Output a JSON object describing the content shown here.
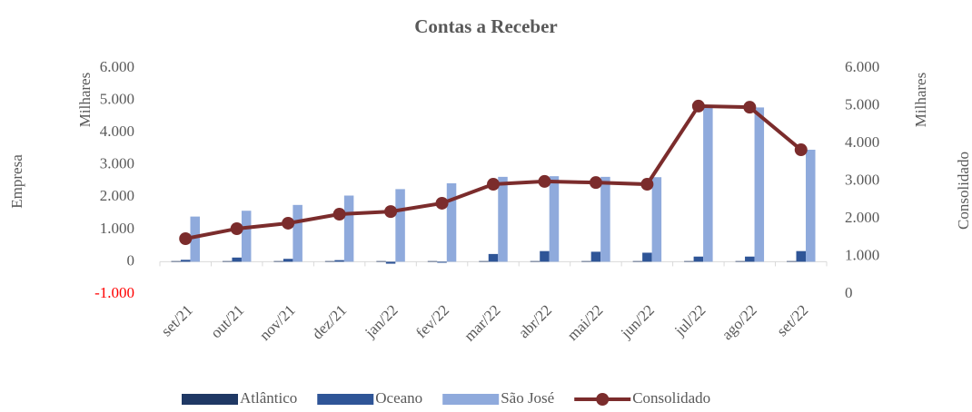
{
  "chart_data": {
    "type": "bar_line",
    "title": "Contas a Receber",
    "y_label": "Empresa",
    "y_unit": "Milhares",
    "y2_label": "Consolidado",
    "y2_unit": "Milhares",
    "categories": [
      "set/21",
      "out/21",
      "nov/21",
      "dez/21",
      "jan/22",
      "fev/22",
      "mar/22",
      "abr/22",
      "mai/22",
      "jun/22",
      "jul/22",
      "ago/22",
      "set/22"
    ],
    "series": [
      {
        "name": "Atlântico",
        "type": "bar",
        "color": "#1f3864",
        "values": [
          20,
          20,
          20,
          20,
          20,
          20,
          20,
          20,
          20,
          20,
          20,
          20,
          20
        ]
      },
      {
        "name": "Oceano",
        "type": "bar",
        "color": "#2f5597",
        "values": [
          60,
          130,
          90,
          50,
          -60,
          -30,
          240,
          330,
          310,
          280,
          160,
          160,
          330
        ]
      },
      {
        "name": "São José",
        "type": "bar",
        "color": "#8faadc",
        "values": [
          1400,
          1580,
          1760,
          2050,
          2250,
          2430,
          2630,
          2650,
          2630,
          2620,
          4850,
          4780,
          3470
        ]
      },
      {
        "name": "Consolidado",
        "type": "line",
        "axis": "y2",
        "color": "#7b2c2c",
        "values": [
          1470,
          1735,
          1880,
          2120,
          2190,
          2410,
          2915,
          2990,
          2960,
          2915,
          4990,
          4960,
          3830
        ]
      }
    ],
    "ylim": [
      -1000,
      6000
    ],
    "yticks": [
      {
        "value": -1000,
        "label": "-1.000"
      },
      0,
      {
        "value": 1000,
        "label": "1.000"
      },
      {
        "value": 2000,
        "label": "2.000"
      },
      {
        "value": 3000,
        "label": "3.000"
      },
      {
        "value": 4000,
        "label": "4.000"
      },
      {
        "value": 5000,
        "label": "5.000"
      },
      {
        "value": 6000,
        "label": "6.000"
      }
    ],
    "negative_tick_color": "#ff0000",
    "y2lim": [
      0,
      6000
    ],
    "y2ticks": [
      0,
      {
        "value": 1000,
        "label": "1.000"
      },
      {
        "value": 2000,
        "label": "2.000"
      },
      {
        "value": 3000,
        "label": "3.000"
      },
      {
        "value": 4000,
        "label": "4.000"
      },
      {
        "value": 5000,
        "label": "5.000"
      },
      {
        "value": 6000,
        "label": "6.000"
      }
    ],
    "legend": "bottom"
  }
}
